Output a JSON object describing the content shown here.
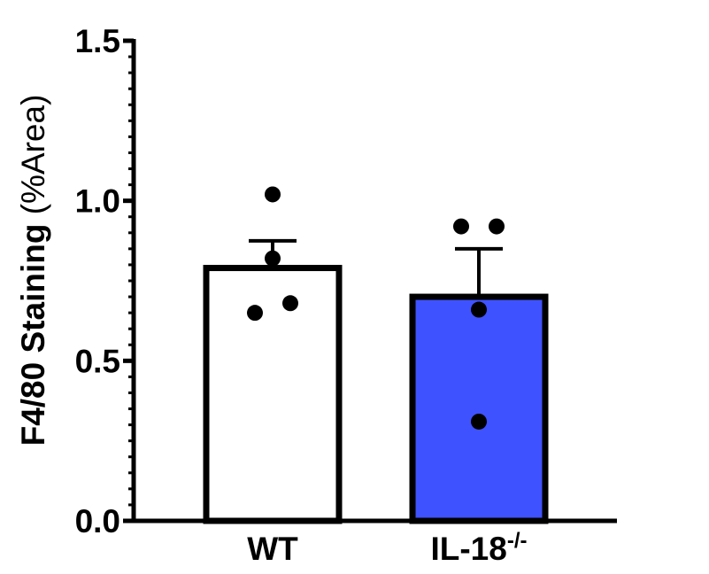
{
  "chart_data": {
    "type": "bar",
    "ylabel_bold": "F4/80 Staining",
    "ylabel_plain": " (%Area)",
    "categories": [
      {
        "base": "WT",
        "sup": ""
      },
      {
        "base": "IL-18",
        "sup": "-/-"
      }
    ],
    "series": [
      {
        "values": [
          0.79,
          0.7
        ],
        "errors": [
          0.085,
          0.15
        ],
        "colors": [
          "#ffffff",
          "#3f52ff"
        ]
      }
    ],
    "points": [
      [
        1.02,
        0.82,
        0.65,
        0.68
      ],
      [
        0.92,
        0.92,
        0.66,
        0.31
      ]
    ],
    "ylim": [
      0,
      1.5
    ],
    "yticks": [
      "0.0",
      "0.5",
      "1.0",
      "1.5"
    ],
    "grid": false
  }
}
